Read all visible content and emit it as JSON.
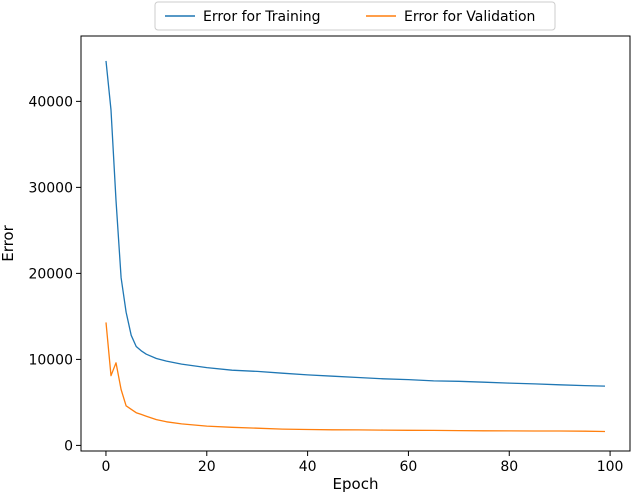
{
  "chart_data": {
    "type": "line",
    "xlabel": "Epoch",
    "ylabel": "Error",
    "xlim": [
      -4.95,
      103.95
    ],
    "ylim": [
      -650,
      47600
    ],
    "xticks": [
      0,
      20,
      40,
      60,
      80,
      100
    ],
    "yticks": [
      0,
      10000,
      20000,
      30000,
      40000
    ],
    "legend": "top-center",
    "grid": false,
    "series": [
      {
        "name": "Error for Training",
        "color": "#1f77b4",
        "x": [
          0,
          1,
          2,
          3,
          4,
          5,
          6,
          7,
          8,
          10,
          12,
          15,
          20,
          25,
          30,
          35,
          40,
          45,
          50,
          55,
          60,
          65,
          70,
          75,
          80,
          85,
          90,
          95,
          99
        ],
        "y": [
          44700,
          39000,
          28500,
          19500,
          15500,
          12800,
          11500,
          11000,
          10600,
          10100,
          9800,
          9450,
          9050,
          8750,
          8600,
          8400,
          8200,
          8050,
          7900,
          7750,
          7650,
          7500,
          7450,
          7350,
          7250,
          7150,
          7050,
          6950,
          6900
        ]
      },
      {
        "name": "Error for Validation",
        "color": "#ff7f0e",
        "x": [
          0,
          1,
          2,
          3,
          4,
          5,
          6,
          7,
          8,
          10,
          12,
          15,
          20,
          25,
          30,
          35,
          40,
          45,
          50,
          55,
          60,
          65,
          70,
          75,
          80,
          85,
          90,
          95,
          99
        ],
        "y": [
          14300,
          8100,
          9600,
          6500,
          4600,
          4200,
          3800,
          3600,
          3400,
          3000,
          2750,
          2500,
          2250,
          2100,
          2000,
          1900,
          1850,
          1820,
          1800,
          1780,
          1760,
          1740,
          1720,
          1700,
          1690,
          1680,
          1670,
          1650,
          1620
        ]
      }
    ]
  }
}
